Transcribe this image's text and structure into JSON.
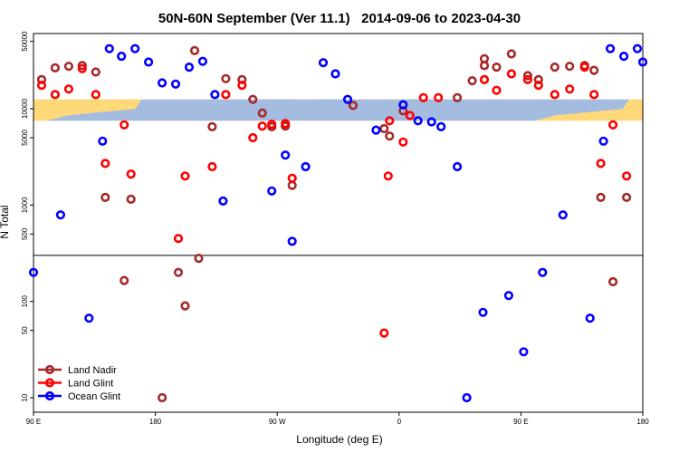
{
  "chart_data": {
    "type": "scatter",
    "title": "50N-60N September (Ver 11.1)   2014-09-06 to 2023-04-30",
    "xlabel": "Longitude (deg E)",
    "ylabel": "N Total",
    "y_scale": "log",
    "xlim": [
      90,
      540
    ],
    "ylim_log10": [
      0.85,
      4.78
    ],
    "x_ticks": [
      {
        "value": 90,
        "label": "90 E"
      },
      {
        "value": 180,
        "label": "180"
      },
      {
        "value": 270,
        "label": "90 W"
      },
      {
        "value": 360,
        "label": "0"
      },
      {
        "value": 450,
        "label": "90 E"
      },
      {
        "value": 540,
        "label": "180"
      }
    ],
    "y_ticks": [
      {
        "value": 10,
        "label": "10"
      },
      {
        "value": 50,
        "label": "50"
      },
      {
        "value": 100,
        "label": "100"
      },
      {
        "value": 500,
        "label": "500"
      },
      {
        "value": 1000,
        "label": "1000"
      },
      {
        "value": 5000,
        "label": "5000"
      },
      {
        "value": 10000,
        "label": "10000"
      },
      {
        "value": 50000,
        "label": "50000"
      }
    ],
    "axis_break_at": 300,
    "map_band": {
      "y_from": 7500,
      "y_to": 12500
    },
    "legend": {
      "position": "bottom-left",
      "entries": [
        {
          "label": "Land Nadir",
          "color": "#a52a2a"
        },
        {
          "label": "Land Glint",
          "color": "#ff0000"
        },
        {
          "label": "Ocean Glint",
          "color": "#0000ff"
        }
      ]
    },
    "series": [
      {
        "name": "Land Nadir",
        "color": "#a52a2a",
        "points": [
          [
            96,
            20000
          ],
          [
            106,
            26500
          ],
          [
            116,
            27500
          ],
          [
            126,
            28000
          ],
          [
            136,
            24000
          ],
          [
            143,
            1200
          ],
          [
            157,
            165
          ],
          [
            162,
            1150
          ],
          [
            185,
            10
          ],
          [
            197,
            200
          ],
          [
            202,
            90
          ],
          [
            209,
            40000
          ],
          [
            212,
            280
          ],
          [
            222,
            6500
          ],
          [
            232,
            20500
          ],
          [
            244,
            20000
          ],
          [
            252,
            12500
          ],
          [
            259,
            9000
          ],
          [
            266,
            6500
          ],
          [
            276,
            6600
          ],
          [
            276,
            6800
          ],
          [
            281,
            1600
          ],
          [
            326,
            10800
          ],
          [
            349,
            6200
          ],
          [
            353,
            5200
          ],
          [
            363,
            9500
          ],
          [
            403,
            13000
          ],
          [
            414,
            19500
          ],
          [
            423,
            28000
          ],
          [
            423,
            33000
          ],
          [
            432,
            27000
          ],
          [
            443,
            37000
          ],
          [
            455,
            22000
          ],
          [
            463,
            20000
          ],
          [
            475,
            27000
          ],
          [
            486,
            27500
          ],
          [
            497,
            28000
          ],
          [
            504,
            25000
          ],
          [
            509,
            1200
          ],
          [
            518,
            160
          ],
          [
            528,
            1200
          ]
        ]
      },
      {
        "name": "Land Glint",
        "color": "#ff0000",
        "points": [
          [
            96,
            17500
          ],
          [
            106,
            14000
          ],
          [
            116,
            16000
          ],
          [
            126,
            26000
          ],
          [
            136,
            14000
          ],
          [
            143,
            2700
          ],
          [
            157,
            6800
          ],
          [
            162,
            2100
          ],
          [
            197,
            450
          ],
          [
            202,
            2000
          ],
          [
            222,
            2500
          ],
          [
            232,
            14000
          ],
          [
            244,
            17500
          ],
          [
            252,
            5000
          ],
          [
            259,
            6600
          ],
          [
            266,
            6900
          ],
          [
            276,
            7000
          ],
          [
            281,
            1900
          ],
          [
            349,
            47
          ],
          [
            352,
            2000
          ],
          [
            353,
            7500
          ],
          [
            363,
            4500
          ],
          [
            368,
            8500
          ],
          [
            378,
            13000
          ],
          [
            389,
            13000
          ],
          [
            423,
            20000
          ],
          [
            432,
            15500
          ],
          [
            443,
            23000
          ],
          [
            455,
            20000
          ],
          [
            463,
            17500
          ],
          [
            475,
            14000
          ],
          [
            486,
            16000
          ],
          [
            497,
            27000
          ],
          [
            504,
            14000
          ],
          [
            509,
            2700
          ],
          [
            518,
            6800
          ],
          [
            528,
            2000
          ]
        ]
      },
      {
        "name": "Ocean Glint",
        "color": "#0000ff",
        "points": [
          [
            90,
            200
          ],
          [
            110,
            790
          ],
          [
            131,
            67
          ],
          [
            141,
            4600
          ],
          [
            146,
            42000
          ],
          [
            155,
            35000
          ],
          [
            165,
            42000
          ],
          [
            175,
            30500
          ],
          [
            185,
            18500
          ],
          [
            195,
            18000
          ],
          [
            205,
            27000
          ],
          [
            215,
            31000
          ],
          [
            224,
            14000
          ],
          [
            230,
            1100
          ],
          [
            266,
            1400
          ],
          [
            276,
            3300
          ],
          [
            281,
            420
          ],
          [
            291,
            2500
          ],
          [
            304,
            30000
          ],
          [
            313,
            23000
          ],
          [
            322,
            12500
          ],
          [
            343,
            6000
          ],
          [
            363,
            11000
          ],
          [
            374,
            7500
          ],
          [
            384,
            7300
          ],
          [
            391,
            6500
          ],
          [
            403,
            2500
          ],
          [
            410,
            10
          ],
          [
            422,
            77
          ],
          [
            441,
            115
          ],
          [
            452,
            30
          ],
          [
            466,
            200
          ],
          [
            481,
            790
          ],
          [
            501,
            67
          ],
          [
            511,
            4600
          ],
          [
            516,
            42000
          ],
          [
            526,
            35000
          ],
          [
            536,
            42000
          ],
          [
            540,
            30500
          ]
        ]
      }
    ]
  }
}
